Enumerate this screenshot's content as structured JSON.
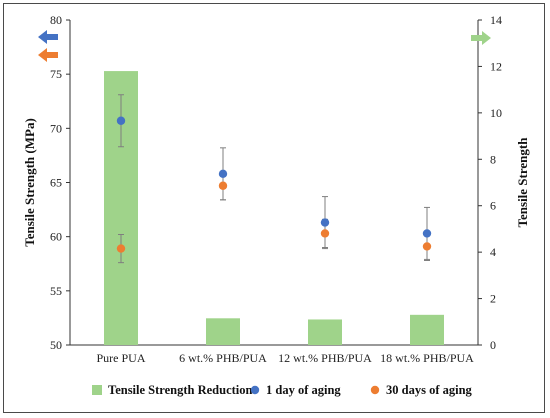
{
  "chart_data": {
    "type": "bar",
    "categories": [
      "Pure PUA",
      "6 wt.% PHB/PUA",
      "12 wt.% PHB/PUA",
      "18 wt.% PHB/PUA"
    ],
    "series": [
      {
        "name": "Tensile Strength Reduction",
        "type": "bar",
        "axis": "right",
        "color": "#9fd38a",
        "values": [
          11.8,
          1.15,
          1.1,
          1.3
        ]
      },
      {
        "name": "1 day of aging",
        "type": "scatter",
        "axis": "left",
        "color": "#4472c4",
        "values": [
          70.7,
          65.8,
          61.3,
          60.3
        ],
        "error": [
          2.4,
          2.4,
          2.4,
          2.4
        ]
      },
      {
        "name": "30 days of aging",
        "type": "scatter",
        "axis": "left",
        "color": "#ed7d31",
        "values": [
          58.9,
          64.7,
          60.3,
          59.1
        ],
        "error": [
          1.3,
          1.3,
          1.3,
          1.3
        ]
      }
    ],
    "ylabel": "Tensile Strength (MPa)",
    "ylabel_right": "Tensile Strength",
    "ylim": [
      50,
      80
    ],
    "yticks": [
      "50",
      "55",
      "60",
      "65",
      "70",
      "75",
      "80"
    ],
    "ylim_right": [
      0,
      14
    ],
    "yticks_right": [
      "0",
      "2",
      "4",
      "6",
      "8",
      "10",
      "12",
      "14"
    ],
    "grid": false,
    "legend_position": "bottom",
    "axis_indicators": {
      "left_arrow_colors": [
        "#4472c4",
        "#ed7d31"
      ],
      "right_arrow_color": "#9fd38a"
    }
  }
}
